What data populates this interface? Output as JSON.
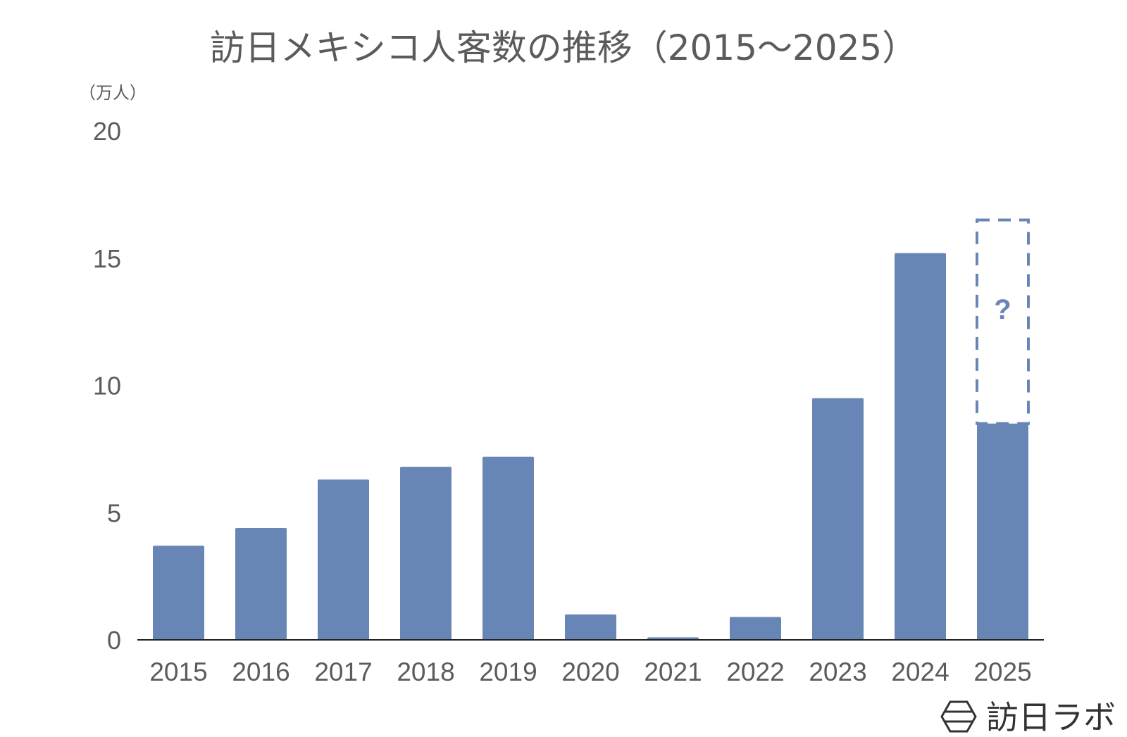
{
  "chart_data": {
    "type": "bar",
    "title": "訪日メキシコ人客数の推移（2015〜2025）",
    "ylabel": "（万人）",
    "xlabel": "",
    "ylim": [
      0,
      20
    ],
    "yticks": [
      0,
      5,
      10,
      15,
      20
    ],
    "grid": false,
    "legend": "none",
    "categories": [
      "2015",
      "2016",
      "2017",
      "2018",
      "2019",
      "2020",
      "2021",
      "2022",
      "2023",
      "2024",
      "2025"
    ],
    "values": [
      3.7,
      4.4,
      6.3,
      6.8,
      7.2,
      1.0,
      0.1,
      0.9,
      9.5,
      15.2,
      8.5
    ],
    "projection": {
      "category": "2025",
      "from": 8.5,
      "to": 16.5,
      "label": "?"
    },
    "colors": {
      "bar": "#6886b5",
      "projection": "#6886b5",
      "axis": "#222222",
      "text": "#5b5b5b"
    }
  },
  "brand": {
    "name": "訪日ラボ",
    "icon": "hexagon-logo-icon"
  }
}
